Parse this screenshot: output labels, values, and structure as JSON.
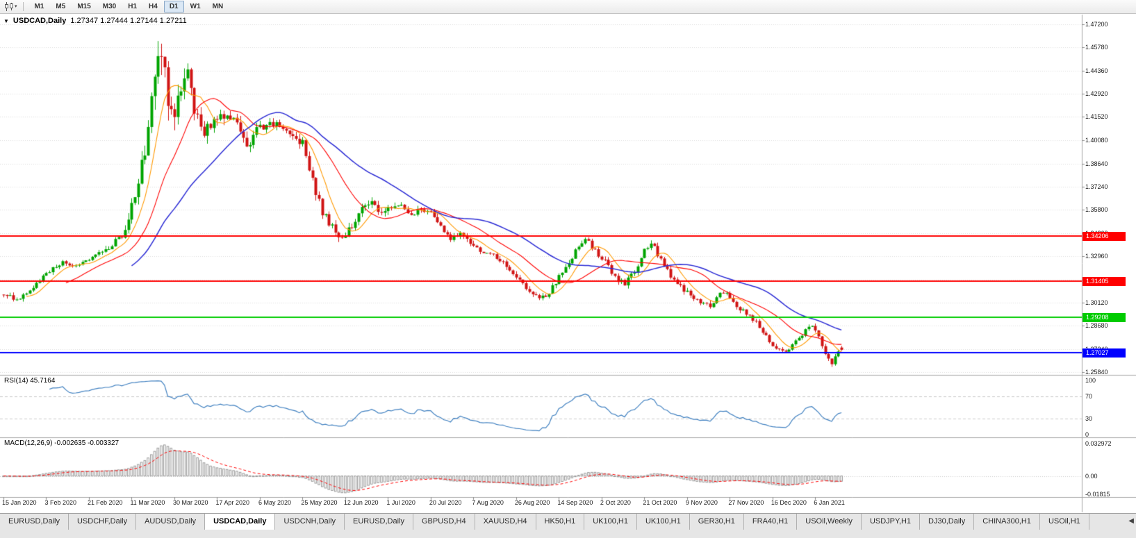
{
  "toolbar": {
    "timeframes": [
      "M1",
      "M5",
      "M15",
      "M30",
      "H1",
      "H4",
      "D1",
      "W1",
      "MN"
    ],
    "active_timeframe": "D1"
  },
  "icons": {
    "symbol_menu": "▼",
    "toolbar_caret": "▾",
    "tab_scroll_left": "◀"
  },
  "chart_header": {
    "symbol": "USDCAD,Daily",
    "ohlc": "1.27347 1.27444 1.27144 1.27211"
  },
  "chart_data": {
    "type": "candlestick",
    "symbol": "USDCAD",
    "timeframe": "Daily",
    "last_bar": {
      "open": 1.27347,
      "high": 1.27444,
      "low": 1.27144,
      "close": 1.27211
    },
    "price_axis": {
      "top": 1.472,
      "bottom": 1.2584,
      "ticks": [
        "1.47200",
        "1.45780",
        "1.44360",
        "1.42920",
        "1.41520",
        "1.40080",
        "1.38640",
        "1.37240",
        "1.35800",
        "1.34360",
        "1.32960",
        "1.31520",
        "1.30120",
        "1.28680",
        "1.27240",
        "1.25840"
      ]
    },
    "x_labels": [
      "15 Jan 2020",
      "3 Feb 2020",
      "21 Feb 2020",
      "11 Mar 2020",
      "30 Mar 2020",
      "17 Apr 2020",
      "6 May 2020",
      "25 May 2020",
      "12 Jun 2020",
      "1 Jul 2020",
      "20 Jul 2020",
      "7 Aug 2020",
      "26 Aug 2020",
      "14 Sep 2020",
      "2 Oct 2020",
      "21 Oct 2020",
      "9 Nov 2020",
      "27 Nov 2020",
      "16 Dec 2020",
      "6 Jan 2021"
    ],
    "bars_total": 256,
    "bars_per_label": 13,
    "candle_colors": {
      "up": "#00A400",
      "down": "#D01414"
    },
    "price_anchors": [
      [
        0,
        1.306,
        0.0035
      ],
      [
        4,
        1.303,
        0.003
      ],
      [
        8,
        1.3095,
        0.003
      ],
      [
        13,
        1.319,
        0.003
      ],
      [
        18,
        1.3255,
        0.0032
      ],
      [
        22,
        1.323,
        0.003
      ],
      [
        26,
        1.3285,
        0.003
      ],
      [
        30,
        1.332,
        0.0035
      ],
      [
        34,
        1.339,
        0.004
      ],
      [
        37,
        1.344,
        0.006
      ],
      [
        40,
        1.368,
        0.009
      ],
      [
        43,
        1.395,
        0.013
      ],
      [
        46,
        1.435,
        0.018
      ],
      [
        48,
        1.456,
        0.02
      ],
      [
        50,
        1.428,
        0.016
      ],
      [
        52,
        1.412,
        0.014
      ],
      [
        54,
        1.433,
        0.012
      ],
      [
        56,
        1.443,
        0.011
      ],
      [
        58,
        1.419,
        0.01
      ],
      [
        61,
        1.404,
        0.009
      ],
      [
        64,
        1.414,
        0.008
      ],
      [
        68,
        1.418,
        0.007
      ],
      [
        71,
        1.409,
        0.007
      ],
      [
        74,
        1.396,
        0.0065
      ],
      [
        77,
        1.407,
        0.006
      ],
      [
        81,
        1.411,
        0.0055
      ],
      [
        85,
        1.409,
        0.005
      ],
      [
        88,
        1.402,
        0.005
      ],
      [
        91,
        1.399,
        0.005
      ],
      [
        94,
        1.376,
        0.006
      ],
      [
        97,
        1.356,
        0.006
      ],
      [
        100,
        1.347,
        0.0055
      ],
      [
        103,
        1.34,
        0.005
      ],
      [
        106,
        1.348,
        0.0048
      ],
      [
        109,
        1.359,
        0.0046
      ],
      [
        112,
        1.362,
        0.0044
      ],
      [
        115,
        1.356,
        0.0042
      ],
      [
        118,
        1.36,
        0.004
      ],
      [
        121,
        1.362,
        0.0038
      ],
      [
        124,
        1.355,
        0.0036
      ],
      [
        127,
        1.358,
        0.0036
      ],
      [
        130,
        1.357,
        0.0036
      ],
      [
        133,
        1.348,
        0.0036
      ],
      [
        136,
        1.341,
        0.0036
      ],
      [
        139,
        1.343,
        0.0034
      ],
      [
        142,
        1.338,
        0.0034
      ],
      [
        145,
        1.332,
        0.0034
      ],
      [
        148,
        1.331,
        0.0032
      ],
      [
        151,
        1.327,
        0.0032
      ],
      [
        154,
        1.321,
        0.0032
      ],
      [
        157,
        1.314,
        0.0032
      ],
      [
        160,
        1.308,
        0.0032
      ],
      [
        163,
        1.303,
        0.0032
      ],
      [
        166,
        1.307,
        0.0032
      ],
      [
        169,
        1.317,
        0.0034
      ],
      [
        172,
        1.326,
        0.0036
      ],
      [
        175,
        1.337,
        0.0038
      ],
      [
        177,
        1.34,
        0.0036
      ],
      [
        180,
        1.333,
        0.0034
      ],
      [
        183,
        1.326,
        0.0034
      ],
      [
        186,
        1.316,
        0.0034
      ],
      [
        189,
        1.313,
        0.0032
      ],
      [
        192,
        1.32,
        0.0034
      ],
      [
        195,
        1.333,
        0.0036
      ],
      [
        197,
        1.338,
        0.0036
      ],
      [
        200,
        1.327,
        0.0034
      ],
      [
        203,
        1.317,
        0.0034
      ],
      [
        206,
        1.311,
        0.0032
      ],
      [
        209,
        1.305,
        0.0032
      ],
      [
        212,
        1.301,
        0.003
      ],
      [
        215,
        1.299,
        0.003
      ],
      [
        218,
        1.306,
        0.003
      ],
      [
        220,
        1.308,
        0.003
      ],
      [
        223,
        1.299,
        0.003
      ],
      [
        226,
        1.294,
        0.0028
      ],
      [
        229,
        1.289,
        0.0028
      ],
      [
        232,
        1.28,
        0.0028
      ],
      [
        235,
        1.273,
        0.0028
      ],
      [
        238,
        1.2715,
        0.0026
      ],
      [
        241,
        1.277,
        0.0026
      ],
      [
        244,
        1.284,
        0.0026
      ],
      [
        246,
        1.2875,
        0.0026
      ],
      [
        248,
        1.28,
        0.0026
      ],
      [
        250,
        1.27,
        0.0026
      ],
      [
        252,
        1.2645,
        0.0028
      ],
      [
        254,
        1.27,
        0.0026
      ],
      [
        255,
        1.27211,
        0.0024
      ]
    ],
    "horizontal_lines": [
      {
        "price": 1.34206,
        "label": "1.34206",
        "color": "#FF0000"
      },
      {
        "price": 1.31405,
        "label": "1.31405",
        "color": "#FF0000"
      },
      {
        "price": 1.29208,
        "label": "1.29208",
        "color": "#00CC00"
      },
      {
        "price": 1.27027,
        "label": "1.27027",
        "color": "#0000FF"
      }
    ],
    "moving_averages": [
      {
        "period": 8,
        "color": "#FF9900"
      },
      {
        "period": 20,
        "color": "#FF0000"
      },
      {
        "period": 40,
        "color": "#2A2AD4"
      }
    ],
    "indicators": [
      {
        "name": "RSI",
        "display": "RSI(14) 45.7164",
        "period": 14,
        "value": 45.7164,
        "axis_labels": [
          "100",
          "70",
          "30",
          "0"
        ],
        "dashed_levels": [
          70,
          30
        ],
        "line_color": "#4080C0"
      },
      {
        "name": "MACD",
        "display": "MACD(12,26,9) -0.002635 -0.003327",
        "fast": 12,
        "slow": 26,
        "signal": 9,
        "main_value": -0.002635,
        "signal_value": -0.003327,
        "axis_labels": [
          "0.032972",
          "0.00",
          "-0.01815"
        ],
        "histogram_color": "#999999",
        "signal_color": "#FF0000"
      }
    ]
  },
  "tabs": {
    "items": [
      "EURUSD,Daily",
      "USDCHF,Daily",
      "AUDUSD,Daily",
      "USDCAD,Daily",
      "USDCNH,Daily",
      "EURUSD,Daily",
      "GBPUSD,H4",
      "XAUUSD,H4",
      "HK50,H1",
      "UK100,H1",
      "UK100,H1",
      "GER30,H1",
      "FRA40,H1",
      "USOil,Weekly",
      "USDJPY,H1",
      "DJ30,Daily",
      "CHINA300,H1",
      "USOil,H1"
    ],
    "active_index": 3
  }
}
